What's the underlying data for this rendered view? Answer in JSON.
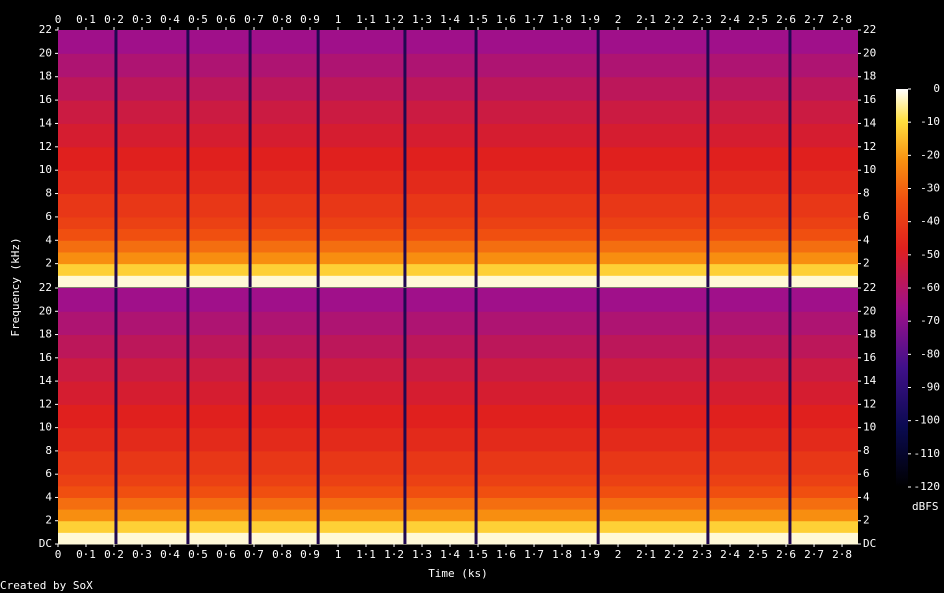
{
  "chart_data": {
    "type": "spectrogram",
    "x_label": "Time (ks)",
    "y_label": "Frequency (kHz)",
    "colorbar_label": "dBFS",
    "footer": "Created by SoX",
    "channels": 2,
    "xlim": [
      0,
      2.857
    ],
    "xticks": [
      0,
      {
        "value": 0.1,
        "label": "0·1"
      },
      {
        "value": 0.2,
        "label": "0·2"
      },
      {
        "value": 0.3,
        "label": "0·3"
      },
      {
        "value": 0.4,
        "label": "0·4"
      },
      {
        "value": 0.5,
        "label": "0·5"
      },
      {
        "value": 0.6,
        "label": "0·6"
      },
      {
        "value": 0.7,
        "label": "0·7"
      },
      {
        "value": 0.8,
        "label": "0·8"
      },
      {
        "value": 0.9,
        "label": "0·9"
      },
      1,
      {
        "value": 1.1,
        "label": "1·1"
      },
      {
        "value": 1.2,
        "label": "1·2"
      },
      {
        "value": 1.3,
        "label": "1·3"
      },
      {
        "value": 1.4,
        "label": "1·4"
      },
      {
        "value": 1.5,
        "label": "1·5"
      },
      {
        "value": 1.6,
        "label": "1·6"
      },
      {
        "value": 1.7,
        "label": "1·7"
      },
      {
        "value": 1.8,
        "label": "1·8"
      },
      {
        "value": 1.9,
        "label": "1·9"
      },
      2,
      {
        "value": 2.1,
        "label": "2·1"
      },
      {
        "value": 2.2,
        "label": "2·2"
      },
      {
        "value": 2.3,
        "label": "2·3"
      },
      {
        "value": 2.4,
        "label": "2·4"
      },
      {
        "value": 2.5,
        "label": "2·5"
      },
      {
        "value": 2.6,
        "label": "2·6"
      },
      {
        "value": 2.7,
        "label": "2·7"
      },
      {
        "value": 2.8,
        "label": "2·8"
      }
    ],
    "ylim": [
      0,
      22
    ],
    "yticks": [
      {
        "value": 0,
        "label": "DC"
      },
      2,
      4,
      6,
      8,
      10,
      12,
      14,
      16,
      18,
      20,
      22
    ],
    "clim": [
      -120,
      0
    ],
    "cticks": [
      0,
      -10,
      -20,
      -30,
      -40,
      -50,
      -60,
      -70,
      -80,
      -90,
      -100,
      -110,
      -120
    ],
    "segment_boundaries": [
      0.207,
      0.464,
      0.686,
      0.929,
      1.239,
      1.493,
      1.929,
      2.321,
      2.614
    ],
    "profile_freq": [
      0,
      1,
      2,
      3,
      4,
      5,
      6,
      8,
      10,
      12,
      14,
      16,
      18,
      20,
      22
    ],
    "profile_db": [
      -2,
      -12,
      -22,
      -28,
      -34,
      -38,
      -41,
      -45,
      -48,
      -51,
      -54,
      -58,
      -62,
      -66,
      -70
    ]
  }
}
